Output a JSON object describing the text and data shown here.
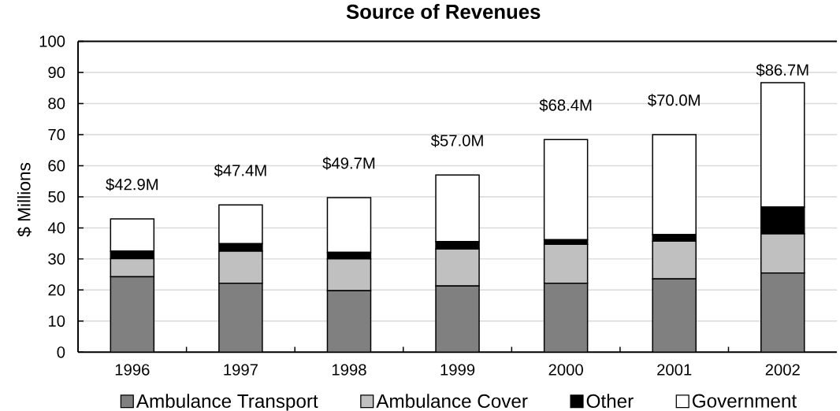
{
  "chart_data": {
    "type": "bar",
    "title": "Source of Revenues",
    "ylabel": "$ Millions",
    "categories": [
      "1996",
      "1997",
      "1998",
      "1999",
      "2000",
      "2001",
      "2002"
    ],
    "stacked": true,
    "series": [
      {
        "name": "Ambulance Transport",
        "color": "#808080",
        "values": [
          24.3,
          22.2,
          19.8,
          21.3,
          22.2,
          23.6,
          25.5
        ]
      },
      {
        "name": "Ambulance Cover",
        "color": "#c0c0c0",
        "values": [
          5.8,
          10.3,
          10.2,
          11.9,
          12.5,
          12.1,
          12.6
        ]
      },
      {
        "name": "Other",
        "color": "#000000",
        "values": [
          2.4,
          2.4,
          2.1,
          2.4,
          1.5,
          2.1,
          8.6
        ]
      },
      {
        "name": "Government",
        "color": "#ffffff",
        "values": [
          10.4,
          12.5,
          17.6,
          21.4,
          32.2,
          32.2,
          40.0
        ]
      }
    ],
    "totals": [
      "$42.9M",
      "$47.4M",
      "$49.7M",
      "$57.0M",
      "$68.4M",
      "$70.0M",
      "$86.7M"
    ],
    "ylim": [
      0,
      100
    ],
    "yticks": [
      0,
      10,
      20,
      30,
      40,
      50,
      60,
      70,
      80,
      90,
      100
    ],
    "grid": "y",
    "legend": "bottom"
  }
}
